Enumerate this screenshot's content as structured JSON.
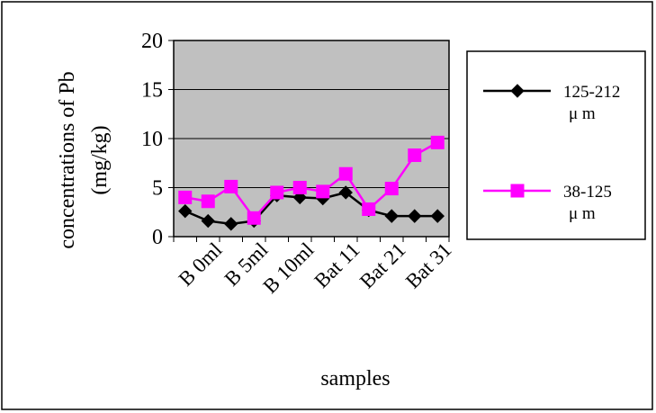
{
  "chart_data": {
    "type": "line",
    "ylabel": [
      "concentrations of Pb",
      "(mg/kg)"
    ],
    "xlabel": "samples",
    "ylim": [
      0,
      20
    ],
    "yticks": [
      "0",
      "5",
      "10",
      "15",
      "20"
    ],
    "grid": true,
    "legend_position": "right",
    "x_tick_labels": [
      "B 0ml",
      "B 5ml",
      "B 10ml",
      "Bat 11",
      "Bat 21",
      "Bat 31"
    ],
    "x_tick_label_positions": [
      2,
      4,
      6,
      8,
      10,
      12
    ],
    "num_points": 12,
    "series": [
      {
        "name_lines": [
          "125-212",
          "μ m"
        ],
        "color": "#000000",
        "marker": "diamond",
        "values": [
          2.6,
          1.6,
          1.3,
          1.6,
          4.2,
          4.0,
          3.9,
          4.5,
          2.7,
          2.1,
          2.1,
          2.1
        ]
      },
      {
        "name_lines": [
          "38-125",
          "μ m"
        ],
        "color": "#ff00ff",
        "marker": "square",
        "values": [
          4.0,
          3.6,
          5.1,
          1.9,
          4.5,
          5.0,
          4.6,
          6.4,
          2.8,
          4.9,
          8.3,
          9.6
        ]
      }
    ],
    "colors": {
      "plot_background": "#c0c0c0",
      "grid": "#000000",
      "frame": "#000000"
    }
  }
}
